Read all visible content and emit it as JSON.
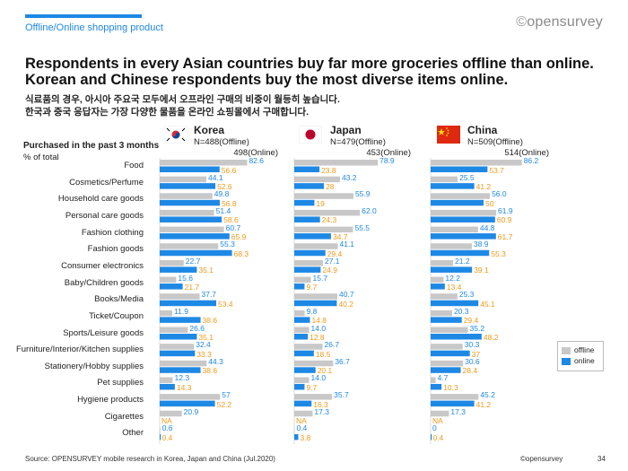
{
  "header": {
    "section": "Offline/Online shopping product",
    "logo": "opensurvey",
    "headline_line1": "Respondents in every Asian countries buy far more groceries offline than online.",
    "headline_line2": "Korean and Chinese respondents buy the most diverse items online.",
    "sub_line1": "식료품의 경우, 아시아 주요국 모두에서 오프라인 구매의 비중이 월등히 높습니다.",
    "sub_line2": "한국과 중국 응답자는 가장 다양한 물품을 온라인 쇼핑몰에서 구매합니다."
  },
  "labels": {
    "purchased": "Purchased in the past 3 months",
    "pct": "% of total"
  },
  "countries": [
    {
      "name": "Korea",
      "n_offline": "N=488(Offline)",
      "n_online": "498(Online)",
      "flag": "korea-flag"
    },
    {
      "name": "Japan",
      "n_offline": "N=479(Offline)",
      "n_online": "453(Online)",
      "flag": "japan-flag"
    },
    {
      "name": "China",
      "n_offline": "N=509(Offline)",
      "n_online": "514(Online)",
      "flag": "china-flag"
    }
  ],
  "legend": {
    "offline": "offline",
    "online": "online"
  },
  "colors": {
    "offline": "#c8c8c8",
    "online": "#1e88e5",
    "offline_text": "#1e88e5",
    "online_text": "#f09a1a"
  },
  "footer": {
    "source": "Source: OPENSURVEY mobile research in Korea, Japan and China (Jul.2020)",
    "copyright": "©opensurvey",
    "page": "34"
  },
  "chart_data": {
    "type": "bar",
    "title": "Purchased in the past 3 months (% of total)",
    "categories": [
      "Food",
      "Cosmetics/Perfume",
      "Household care goods",
      "Personal care goods",
      "Fashion clothing",
      "Fashion goods",
      "Consumer electronics",
      "Baby/Children goods",
      "Books/Media",
      "Ticket/Coupon",
      "Sports/Leisure goods",
      "Furniture/Interior/Kitchen supplies",
      "Stationery/Hobby supplies",
      "Pet supplies",
      "Hygiene products",
      "Cigarettes",
      "Other"
    ],
    "xlim": [
      0,
      100
    ],
    "panels": [
      {
        "country": "Korea",
        "series": [
          {
            "name": "offline",
            "values": [
              82.6,
              44.1,
              49.8,
              51.4,
              60.7,
              55.3,
              22.7,
              15.6,
              37.7,
              11.9,
              26.6,
              32.4,
              44.3,
              12.3,
              57,
              20.9,
              0.6
            ],
            "labels": [
              "82.6",
              "44.1",
              "49.8",
              "51.4",
              "60.7",
              "55.3",
              "22.7",
              "15.6",
              "37.7",
              "11.9",
              "26.6",
              "32.4",
              "44.3",
              "12.3",
              "57",
              "20.9",
              "0.6"
            ]
          },
          {
            "name": "online",
            "values": [
              56.6,
              52.6,
              56.8,
              58.6,
              65.9,
              68.3,
              35.1,
              21.7,
              53.4,
              38.6,
              35.1,
              33.3,
              38.6,
              14.3,
              52.2,
              null,
              0.4
            ],
            "labels": [
              "56.6",
              "52.6",
              "56.8",
              "58.6",
              "65.9",
              "68.3",
              "35.1",
              "21.7",
              "53.4",
              "38.6",
              "35.1",
              "33.3",
              "38.6",
              "14.3",
              "52.2",
              "NA",
              "0.4"
            ]
          }
        ]
      },
      {
        "country": "Japan",
        "series": [
          {
            "name": "offline",
            "values": [
              78.9,
              43.2,
              55.9,
              62.0,
              55.5,
              41.1,
              27.1,
              15.7,
              40.7,
              9.8,
              14.0,
              26.7,
              36.7,
              14.0,
              35.7,
              17.3,
              0.4
            ],
            "labels": [
              "78.9",
              "43.2",
              "55.9",
              "62.0",
              "55.5",
              "41.1",
              "27.1",
              "15.7",
              "40.7",
              "9.8",
              "14.0",
              "26.7",
              "36.7",
              "14.0",
              "35.7",
              "17.3",
              "0.4"
            ]
          },
          {
            "name": "online",
            "values": [
              23.8,
              28,
              19,
              24.3,
              34.7,
              29.4,
              24.9,
              9.7,
              40.2,
              14.8,
              12.8,
              18.5,
              20.1,
              9.7,
              16.3,
              null,
              3.8
            ],
            "labels": [
              "23.8",
              "28",
              "19",
              "24.3",
              "34.7",
              "29.4",
              "24.9",
              "9.7",
              "40.2",
              "14.8",
              "12.8",
              "18.5",
              "20.1",
              "9.7",
              "16.3",
              "NA",
              "3.8"
            ]
          }
        ]
      },
      {
        "country": "China",
        "series": [
          {
            "name": "offline",
            "values": [
              86.2,
              25.5,
              56.0,
              61.9,
              44.8,
              38.9,
              21.2,
              12.2,
              25.3,
              20.3,
              35.2,
              30.3,
              30.6,
              4.7,
              45.2,
              17.3,
              0
            ],
            "labels": [
              "86.2",
              "25.5",
              "56.0",
              "61.9",
              "44.8",
              "38.9",
              "21.2",
              "12.2",
              "25.3",
              "20.3",
              "35.2",
              "30.3",
              "30.6",
              "4.7",
              "45.2",
              "17.3",
              "0"
            ]
          },
          {
            "name": "online",
            "values": [
              53.7,
              41.2,
              50,
              60.9,
              61.7,
              55.3,
              39.1,
              13.4,
              45.1,
              29.4,
              48.2,
              37,
              28.4,
              10.3,
              41.2,
              null,
              0.4
            ],
            "labels": [
              "53.7",
              "41.2",
              "50",
              "60.9",
              "61.7",
              "55.3",
              "39.1",
              "13.4",
              "45.1",
              "29.4",
              "48.2",
              "37",
              "28.4",
              "10.3",
              "41.2",
              "NA",
              "0.4"
            ]
          }
        ]
      }
    ]
  }
}
